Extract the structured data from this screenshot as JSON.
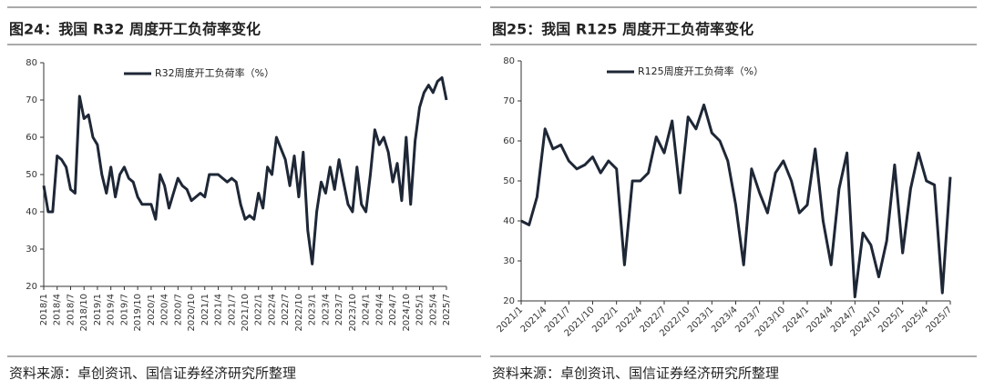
{
  "chart_data": [
    {
      "type": "line",
      "title": "图24：我国 R32 周度开工负荷率变化",
      "source": "资料来源：卓创资讯、国信证券经济研究所整理",
      "categories": [
        "2018/1",
        null,
        null,
        "2018/4",
        null,
        null,
        "2018/7",
        null,
        null,
        "2018/10",
        null,
        null,
        "2019/1",
        null,
        null,
        "2019/4",
        null,
        null,
        "2019/7",
        null,
        null,
        "2019/10",
        null,
        null,
        "2020/1",
        null,
        null,
        "2020/4",
        null,
        null,
        "2020/7",
        null,
        null,
        "2020/10",
        null,
        null,
        "2021/1",
        null,
        null,
        "2021/4",
        null,
        null,
        "2021/7",
        null,
        null,
        "2021/10",
        null,
        null,
        "2022/1",
        null,
        null,
        "2022/4",
        null,
        null,
        "2022/7",
        null,
        null,
        "2022/10",
        null,
        null,
        "2023/1",
        null,
        null,
        "2023/4",
        null,
        null,
        "2023/7",
        null,
        null,
        "2023/10",
        null,
        null,
        "2024/1",
        null,
        null,
        "2024/4",
        null,
        null,
        "2024/7",
        null,
        null,
        "2024/10",
        null,
        null,
        "2025/1",
        null,
        null,
        "2025/4",
        null,
        null,
        "2025/7"
      ],
      "series": [
        {
          "name": "R32周度开工负荷率（%）",
          "color": "#1e2736",
          "values": [
            47,
            40,
            40,
            55,
            54,
            52,
            46,
            45,
            71,
            65,
            66,
            60,
            58,
            50,
            45,
            52,
            44,
            50,
            52,
            49,
            48,
            44,
            42,
            42,
            42,
            38,
            50,
            47,
            41,
            45,
            49,
            47,
            46,
            43,
            44,
            45,
            44,
            50,
            50,
            50,
            49,
            48,
            49,
            48,
            42,
            38,
            39,
            38,
            45,
            41,
            52,
            50,
            60,
            57,
            54,
            47,
            55,
            44,
            56,
            35,
            26,
            40,
            48,
            45,
            52,
            46,
            54,
            48,
            42,
            40,
            52,
            42,
            40,
            50,
            62,
            58,
            60,
            56,
            48,
            53,
            43,
            60,
            42,
            59,
            68,
            72,
            74,
            72,
            75,
            76,
            70
          ]
        }
      ],
      "ylim": [
        20,
        80
      ],
      "yticks": [
        20,
        30,
        40,
        50,
        60,
        70,
        80
      ],
      "legend": "top"
    },
    {
      "type": "line",
      "title": "图25：我国 R125 周度开工负荷率变化",
      "source": "资料来源：卓创资讯、国信证券经济研究所整理",
      "categories": [
        "2021/1",
        null,
        null,
        "2021/4",
        null,
        null,
        "2021/7",
        null,
        null,
        "2021/10",
        null,
        null,
        "2022/1",
        null,
        null,
        "2022/4",
        null,
        null,
        "2022/7",
        null,
        null,
        "2022/10",
        null,
        null,
        "2023/1",
        null,
        null,
        "2023/4",
        null,
        null,
        "2023/7",
        null,
        null,
        "2023/10",
        null,
        null,
        "2024/1",
        null,
        null,
        "2024/4",
        null,
        null,
        "2024/7",
        null,
        null,
        "2024/10",
        null,
        null,
        "2025/1",
        null,
        null,
        "2025/4",
        null,
        null,
        "2025/7"
      ],
      "series": [
        {
          "name": "R125周度开工负荷率（%）",
          "color": "#1e2736",
          "values": [
            40,
            39,
            46,
            63,
            58,
            59,
            55,
            53,
            54,
            56,
            52,
            55,
            53,
            29,
            50,
            50,
            52,
            61,
            57,
            65,
            47,
            66,
            63,
            69,
            62,
            60,
            55,
            44,
            29,
            53,
            47,
            42,
            52,
            55,
            50,
            42,
            44,
            58,
            40,
            29,
            48,
            57,
            21,
            37,
            34,
            26,
            35,
            54,
            32,
            48,
            57,
            50,
            49,
            22,
            51
          ]
        }
      ],
      "ylim": [
        20,
        80
      ],
      "yticks": [
        20,
        30,
        40,
        50,
        60,
        70,
        80
      ],
      "legend": "top"
    }
  ]
}
